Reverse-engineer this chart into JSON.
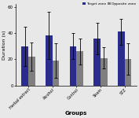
{
  "groups": [
    "Herbal extract",
    "Alcohol",
    "Control",
    "Sham",
    "STZ"
  ],
  "target_values": [
    30,
    38,
    30,
    36,
    41
  ],
  "target_errors": [
    15,
    18,
    10,
    12,
    10
  ],
  "opposite_values": [
    22,
    19,
    26,
    21,
    20
  ],
  "opposite_errors": [
    11,
    13,
    10,
    8,
    12
  ],
  "target_color": "#2b2d8e",
  "opposite_color": "#7f7f7f",
  "ylabel": "Duration (s)",
  "xlabel": "Groups",
  "ylim": [
    0,
    62
  ],
  "yticks": [
    0,
    20,
    40,
    60
  ],
  "legend_labels": [
    "Target zone",
    "Opposite zone"
  ],
  "bar_width": 0.28,
  "figsize": [
    1.77,
    1.5
  ],
  "dpi": 100,
  "bg_color": "#e8e8e8"
}
